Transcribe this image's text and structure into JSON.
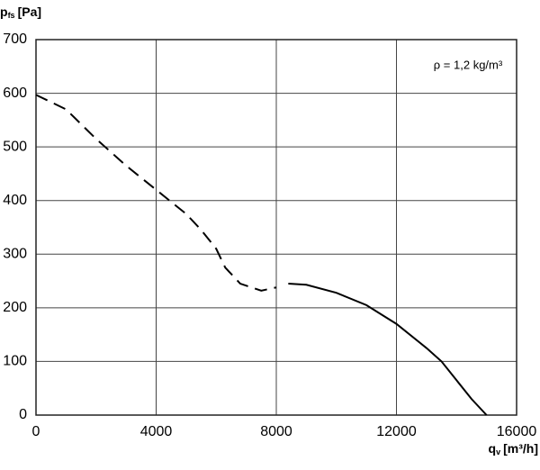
{
  "chart_data": {
    "type": "line",
    "y_label": {
      "symbol": "p",
      "sub": "fs",
      "unit": "[Pa]"
    },
    "x_label": {
      "symbol": "q",
      "sub": "v",
      "unit": "[m³/h]"
    },
    "annotation": "ρ = 1,2 kg/m³",
    "xlim": [
      0,
      16000
    ],
    "xticks": [
      0,
      4000,
      8000,
      12000,
      16000
    ],
    "ylim": [
      0,
      700
    ],
    "yticks": [
      0,
      100,
      200,
      300,
      400,
      500,
      600,
      700
    ],
    "grid": true,
    "series": [
      {
        "color": "#000000",
        "style": "dashed",
        "x": [
          0,
          1000,
          2000,
          3000,
          4000,
          5000,
          5500,
          6000,
          6300,
          6800,
          7500,
          8000
        ],
        "values": [
          597,
          570,
          515,
          465,
          420,
          375,
          345,
          310,
          275,
          245,
          232,
          238
        ]
      },
      {
        "color": "#000000",
        "style": "solid",
        "x": [
          8400,
          9000,
          10000,
          11000,
          12000,
          13000,
          13500,
          14000,
          14500,
          15000
        ],
        "values": [
          245,
          243,
          228,
          205,
          170,
          125,
          100,
          65,
          30,
          0
        ]
      }
    ]
  }
}
